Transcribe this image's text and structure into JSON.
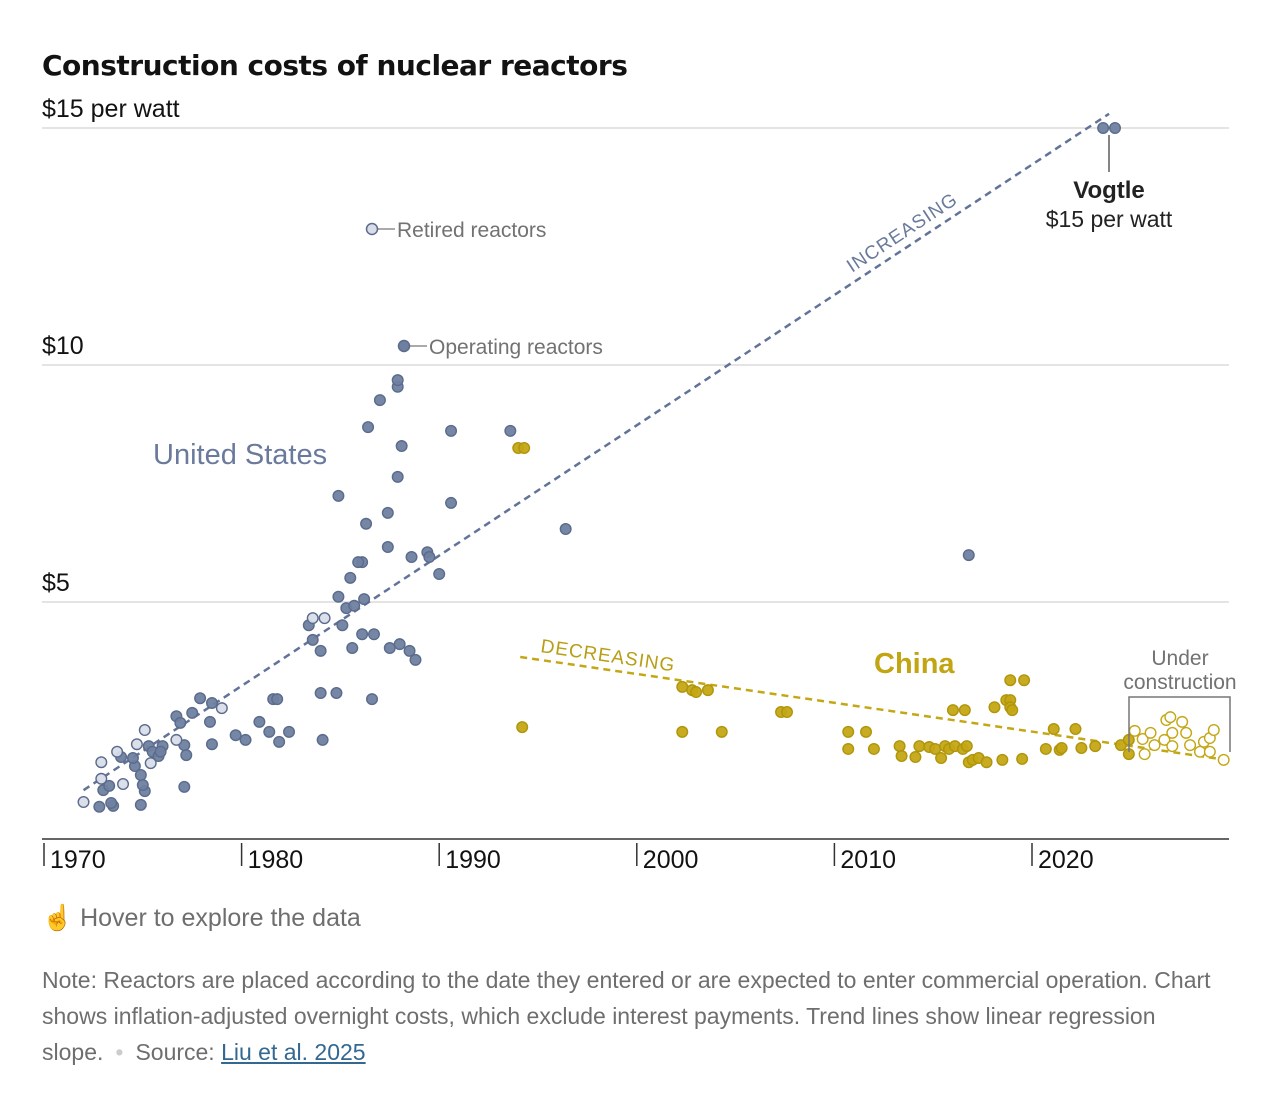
{
  "title": "Construction costs of nuclear reactors",
  "colors": {
    "us": "#6f7fa0",
    "us_stroke": "#5b6b8c",
    "retired": "#d8dde9",
    "china": "#c4a715",
    "china_stroke": "#b0950c",
    "grid": "#dcdcdc"
  },
  "chart_data": {
    "type": "scatter",
    "title": "Construction costs of nuclear reactors",
    "xlim": [
      1970,
      2030
    ],
    "ylim": [
      0,
      15
    ],
    "x_ticks": [
      "1970",
      "1980",
      "1990",
      "2000",
      "2010",
      "2020"
    ],
    "y_ticks": [
      {
        "value": 15,
        "label": "$15 per watt"
      },
      {
        "value": 10,
        "label": "$10"
      },
      {
        "value": 5,
        "label": "$5"
      }
    ],
    "grid": "horizontal",
    "series": [
      {
        "name": "United States",
        "status": "Operating reactors",
        "points": [
          [
            1972.8,
            0.68
          ],
          [
            1973.5,
            0.7
          ],
          [
            1973.4,
            0.76
          ],
          [
            1974.9,
            0.72
          ],
          [
            1975.1,
            1.01
          ],
          [
            1973.0,
            1.03
          ],
          [
            1973.3,
            1.12
          ],
          [
            1973.9,
            1.73
          ],
          [
            1974.6,
            1.54
          ],
          [
            1974.5,
            1.71
          ],
          [
            1974.9,
            1.35
          ],
          [
            1975.0,
            1.14
          ],
          [
            1975.3,
            1.96
          ],
          [
            1975.5,
            1.84
          ],
          [
            1975.8,
            1.75
          ],
          [
            1976.0,
            1.96
          ],
          [
            1975.9,
            1.84
          ],
          [
            1977.1,
            1.1
          ],
          [
            1976.7,
            2.59
          ],
          [
            1977.1,
            1.98
          ],
          [
            1977.2,
            1.77
          ],
          [
            1976.9,
            2.45
          ],
          [
            1977.5,
            2.66
          ],
          [
            1977.9,
            2.97
          ],
          [
            1978.5,
            2.0
          ],
          [
            1978.4,
            2.47
          ],
          [
            1978.5,
            2.87
          ],
          [
            1979.7,
            2.19
          ],
          [
            1980.2,
            2.09
          ],
          [
            1980.9,
            2.47
          ],
          [
            1981.4,
            2.26
          ],
          [
            1981.6,
            2.95
          ],
          [
            1981.8,
            2.95
          ],
          [
            1981.9,
            2.05
          ],
          [
            1982.4,
            2.26
          ],
          [
            1983.4,
            4.51
          ],
          [
            1983.6,
            4.2
          ],
          [
            1984.0,
            3.97
          ],
          [
            1984.0,
            3.08
          ],
          [
            1984.1,
            2.09
          ],
          [
            1984.8,
            3.08
          ],
          [
            1985.1,
            4.51
          ],
          [
            1984.9,
            5.11
          ],
          [
            1985.3,
            4.87
          ],
          [
            1985.5,
            5.51
          ],
          [
            1985.6,
            4.03
          ],
          [
            1985.7,
            4.92
          ],
          [
            1986.1,
            4.32
          ],
          [
            1986.1,
            5.84
          ],
          [
            1985.9,
            5.84
          ],
          [
            1986.2,
            5.06
          ],
          [
            1986.7,
            4.32
          ],
          [
            1986.6,
            2.95
          ],
          [
            1987.5,
            4.03
          ],
          [
            1988.0,
            4.11
          ],
          [
            1988.5,
            3.97
          ],
          [
            1988.8,
            3.78
          ],
          [
            1984.9,
            7.24
          ],
          [
            1986.3,
            6.65
          ],
          [
            1986.4,
            8.69
          ],
          [
            1987.0,
            9.26
          ],
          [
            1987.4,
            6.88
          ],
          [
            1987.4,
            6.16
          ],
          [
            1987.9,
            7.64
          ],
          [
            1987.9,
            9.54
          ],
          [
            1987.9,
            9.68
          ],
          [
            1988.1,
            8.29
          ],
          [
            1988.6,
            5.95
          ],
          [
            1989.4,
            6.05
          ],
          [
            1989.5,
            5.95
          ],
          [
            1990.0,
            5.59
          ],
          [
            1990.6,
            8.61
          ],
          [
            1990.6,
            7.09
          ],
          [
            1993.6,
            8.61
          ],
          [
            1996.4,
            6.54
          ],
          [
            2016.8,
            5.99
          ],
          [
            2023.6,
            15.0
          ],
          [
            2024.2,
            15.0
          ]
        ]
      },
      {
        "name": "United States",
        "status": "Retired reactors",
        "points": [
          [
            1972.0,
            0.78
          ],
          [
            1972.9,
            1.27
          ],
          [
            1972.9,
            1.62
          ],
          [
            1973.7,
            1.84
          ],
          [
            1974.0,
            1.16
          ],
          [
            1974.7,
            2.0
          ],
          [
            1975.1,
            2.3
          ],
          [
            1976.7,
            2.09
          ],
          [
            1979.0,
            2.76
          ],
          [
            1983.6,
            4.66
          ],
          [
            1984.2,
            4.66
          ],
          [
            1975.4,
            1.6
          ]
        ]
      },
      {
        "name": "China",
        "status": "Operating reactors",
        "points": [
          [
            1994.0,
            8.25
          ],
          [
            1994.3,
            8.25
          ],
          [
            1994.2,
            2.36
          ],
          [
            2002.3,
            2.26
          ],
          [
            2002.3,
            3.21
          ],
          [
            2002.8,
            3.14
          ],
          [
            2003.0,
            3.1
          ],
          [
            2003.6,
            3.14
          ],
          [
            2004.3,
            2.26
          ],
          [
            2007.3,
            2.68
          ],
          [
            2007.6,
            2.68
          ],
          [
            2010.7,
            2.26
          ],
          [
            2010.7,
            1.9
          ],
          [
            2011.6,
            2.26
          ],
          [
            2012.0,
            1.9
          ],
          [
            2013.3,
            1.96
          ],
          [
            2013.4,
            1.75
          ],
          [
            2014.1,
            1.73
          ],
          [
            2014.3,
            1.96
          ],
          [
            2014.8,
            1.94
          ],
          [
            2015.1,
            1.9
          ],
          [
            2015.4,
            1.71
          ],
          [
            2015.6,
            1.96
          ],
          [
            2015.8,
            1.9
          ],
          [
            2016.0,
            2.72
          ],
          [
            2016.1,
            1.96
          ],
          [
            2016.5,
            1.9
          ],
          [
            2016.6,
            2.72
          ],
          [
            2016.7,
            1.96
          ],
          [
            2016.8,
            1.62
          ],
          [
            2017.0,
            1.67
          ],
          [
            2017.3,
            1.71
          ],
          [
            2017.7,
            1.62
          ],
          [
            2018.1,
            2.78
          ],
          [
            2018.5,
            1.67
          ],
          [
            2018.7,
            2.93
          ],
          [
            2018.9,
            2.93
          ],
          [
            2018.9,
            2.78
          ],
          [
            2019.0,
            2.72
          ],
          [
            2018.9,
            3.35
          ],
          [
            2019.6,
            3.35
          ],
          [
            2019.5,
            1.69
          ],
          [
            2020.7,
            1.9
          ],
          [
            2021.1,
            2.32
          ],
          [
            2021.4,
            1.88
          ],
          [
            2021.5,
            1.92
          ],
          [
            2022.2,
            2.32
          ],
          [
            2022.5,
            1.92
          ],
          [
            2023.2,
            1.96
          ],
          [
            2024.5,
            1.98
          ],
          [
            2024.9,
            2.09
          ],
          [
            2024.9,
            1.79
          ]
        ]
      },
      {
        "name": "China",
        "status": "Under construction",
        "points": [
          [
            2025.2,
            2.28
          ],
          [
            2025.6,
            2.11
          ],
          [
            2025.7,
            1.79
          ],
          [
            2026.0,
            2.24
          ],
          [
            2026.2,
            1.98
          ],
          [
            2026.7,
            2.09
          ],
          [
            2026.8,
            2.51
          ],
          [
            2027.0,
            2.57
          ],
          [
            2027.1,
            2.24
          ],
          [
            2027.1,
            1.96
          ],
          [
            2027.6,
            2.47
          ],
          [
            2027.8,
            2.24
          ],
          [
            2028.0,
            1.98
          ],
          [
            2028.7,
            2.05
          ],
          [
            2028.5,
            1.84
          ],
          [
            2029.0,
            2.13
          ],
          [
            2029.2,
            2.3
          ],
          [
            2029.0,
            1.84
          ],
          [
            2029.7,
            1.67
          ]
        ]
      }
    ],
    "trend_lines": [
      {
        "label": "INCREASING",
        "series": "United States",
        "from": [
          1972.0,
          1.03
        ],
        "to": [
          2023.9,
          15.3
        ]
      },
      {
        "label": "DECREASING",
        "series": "China",
        "from": [
          1994.1,
          3.84
        ],
        "to": [
          2029.8,
          1.67
        ]
      }
    ],
    "annotations": {
      "retired": "Retired reactors",
      "operating": "Operating reactors",
      "us_label": "United States",
      "china_label": "China",
      "vogtle_name": "Vogtle",
      "vogtle_value": "$15 per watt",
      "under_construction_1": "Under",
      "under_construction_2": "construction"
    }
  },
  "footer": {
    "hover_icon": "pointing-hand-icon",
    "hover_text": "Hover to explore the data",
    "note": "Note: Reactors are placed according to the date they entered or are expected to enter commercial operation. Chart shows inflation-adjusted overnight costs, which exclude interest payments. Trend lines show linear regression slope.",
    "source_label": "Source:",
    "source_link": "Liu et al. 2025"
  }
}
